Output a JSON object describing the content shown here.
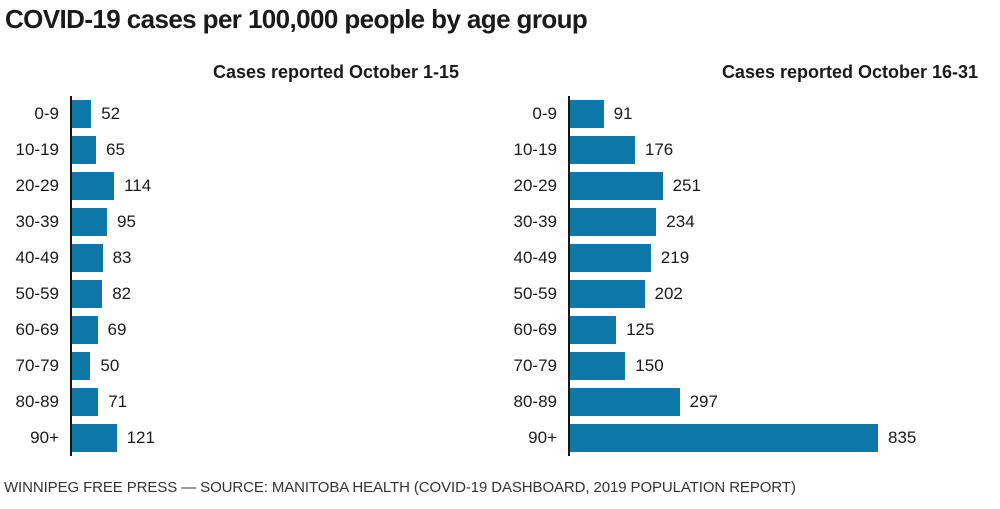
{
  "page": {
    "title": "COVID-19 cases per 100,000 people by age group",
    "source": "WINNIPEG FREE PRESS — SOURCE: MANITOBA HEALTH (COVID-19 DASHBOARD, 2019 POPULATION REPORT)"
  },
  "colors": {
    "bar": "#0d78a8",
    "axis": "#141414",
    "text": "#1a1a1a",
    "source_text": "#333333"
  },
  "chart_data": [
    {
      "type": "bar",
      "orientation": "horizontal",
      "title": "Cases reported October 1-15",
      "categories": [
        "0-9",
        "10-19",
        "20-29",
        "30-39",
        "40-49",
        "50-59",
        "60-69",
        "70-79",
        "80-89",
        "90+"
      ],
      "values": [
        52,
        65,
        114,
        95,
        83,
        82,
        69,
        50,
        71,
        121
      ],
      "value_labels": true,
      "value_axis_visible": false,
      "grid": false,
      "shared_scale_with_other_chart": true
    },
    {
      "type": "bar",
      "orientation": "horizontal",
      "title": "Cases reported October 16-31",
      "categories": [
        "0-9",
        "10-19",
        "20-29",
        "30-39",
        "40-49",
        "50-59",
        "60-69",
        "70-79",
        "80-89",
        "90+"
      ],
      "values": [
        91,
        176,
        251,
        234,
        219,
        202,
        125,
        150,
        297,
        835
      ],
      "value_labels": true,
      "value_axis_visible": false,
      "grid": false,
      "shared_scale_with_other_chart": true
    }
  ]
}
